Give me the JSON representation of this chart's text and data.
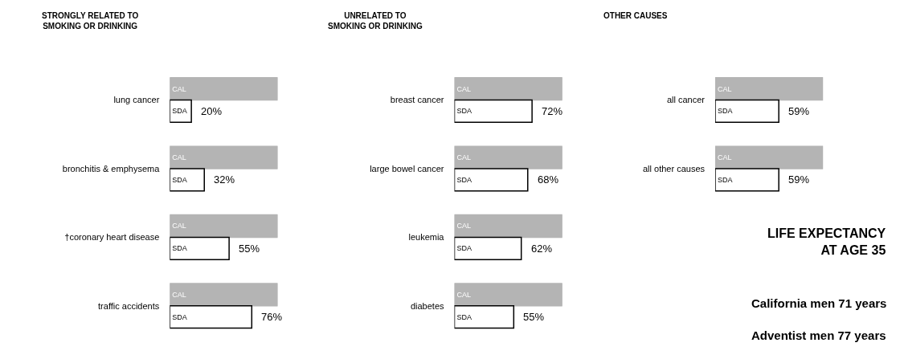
{
  "chart_data": [
    {
      "type": "bar",
      "orientation": "horizontal",
      "title": "STRONGLY RELATED TO\nSMOKING OR DRINKING",
      "categories": [
        "lung cancer",
        "bronchitis & emphysema",
        "†coronary heart disease",
        "traffic accidents"
      ],
      "series": [
        {
          "name": "CAL",
          "color": "#b4b4b4",
          "values": [
            100,
            100,
            100,
            100
          ]
        },
        {
          "name": "SDA",
          "color": "#ffffff",
          "values": [
            20,
            32,
            55,
            76
          ],
          "value_labels": [
            "20%",
            "32%",
            "55%",
            "76%"
          ]
        }
      ]
    },
    {
      "type": "bar",
      "orientation": "horizontal",
      "title": "UNRELATED TO\nSMOKING OR DRINKING",
      "categories": [
        "breast cancer",
        "large bowel cancer",
        "leukemia",
        "diabetes"
      ],
      "series": [
        {
          "name": "CAL",
          "color": "#b4b4b4",
          "values": [
            100,
            100,
            100,
            100
          ]
        },
        {
          "name": "SDA",
          "color": "#ffffff",
          "values": [
            72,
            68,
            62,
            55
          ],
          "value_labels": [
            "72%",
            "68%",
            "62%",
            "55%"
          ]
        }
      ]
    },
    {
      "type": "bar",
      "orientation": "horizontal",
      "title": "OTHER CAUSES",
      "categories": [
        "all cancer",
        "all other causes"
      ],
      "series": [
        {
          "name": "CAL",
          "color": "#b4b4b4",
          "values": [
            100,
            100
          ]
        },
        {
          "name": "SDA",
          "color": "#ffffff",
          "values": [
            59,
            59
          ],
          "value_labels": [
            "59%",
            "59%"
          ]
        }
      ]
    },
    {
      "type": "other",
      "title": "LIFE EXPECTANCY\nAT AGE 35",
      "annotations": [
        "California men 71 years",
        "Adventist men 77 years"
      ]
    }
  ]
}
